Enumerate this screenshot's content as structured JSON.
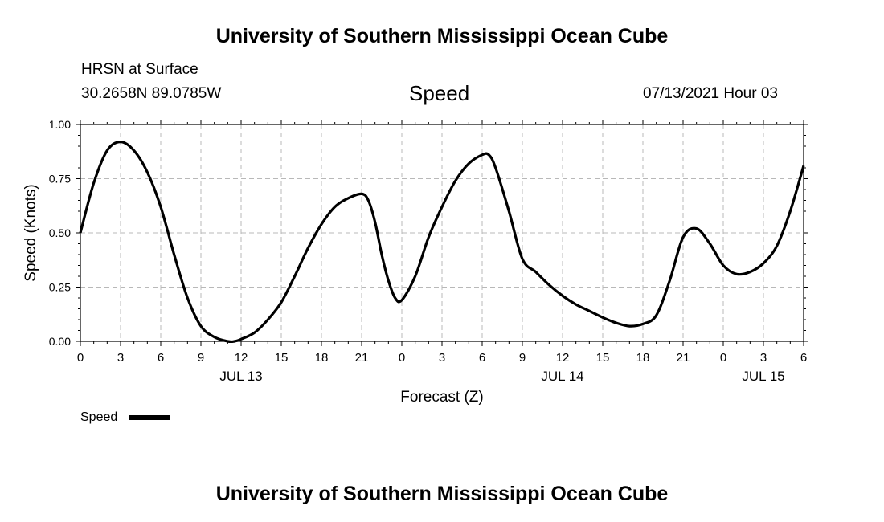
{
  "header": {
    "title_top": "University of Southern Mississippi Ocean Cube",
    "station": "HRSN at Surface",
    "coords": "30.2658N  89.0785W",
    "datetime": "07/13/2021 Hour 03"
  },
  "footer": {
    "title_bottom": "University of Southern Mississippi Ocean Cube"
  },
  "chart_data": {
    "type": "line",
    "title": "Speed",
    "xlabel": "Forecast (Z)",
    "ylabel": "Speed (Knots)",
    "ylim": [
      0,
      1.0
    ],
    "y_ticks": [
      "0.00",
      "0.25",
      "0.50",
      "0.75",
      "1.00"
    ],
    "x_range_hours": [
      0,
      54
    ],
    "x_tick_labels": [
      "0",
      "3",
      "6",
      "9",
      "12",
      "15",
      "18",
      "21",
      "0",
      "3",
      "6",
      "9",
      "12",
      "15",
      "18",
      "21",
      "0",
      "3",
      "6"
    ],
    "date_labels": [
      {
        "label": "JUL 13",
        "hour": 12
      },
      {
        "label": "JUL 14",
        "hour": 36
      },
      {
        "label": "JUL 15",
        "hour": 51
      }
    ],
    "grid": true,
    "legend_position": "bottom-left",
    "series": [
      {
        "name": "Speed",
        "color": "#000000",
        "x": [
          0,
          1,
          2,
          3,
          4,
          5,
          6,
          7,
          8,
          9,
          10,
          11,
          11.5,
          12,
          13,
          14,
          15,
          16,
          17,
          18,
          19,
          20,
          21,
          21.5,
          22,
          22.5,
          23,
          23.5,
          24,
          25,
          26,
          27,
          28,
          29,
          30,
          30.5,
          31,
          32,
          33,
          34,
          35,
          36,
          37,
          38,
          39,
          40,
          41,
          42,
          43,
          44,
          45,
          46,
          47,
          48,
          49,
          50,
          51,
          52,
          53,
          54
        ],
        "y": [
          0.5,
          0.73,
          0.88,
          0.92,
          0.88,
          0.78,
          0.62,
          0.4,
          0.2,
          0.07,
          0.02,
          0.0,
          0.0,
          0.01,
          0.04,
          0.1,
          0.18,
          0.3,
          0.43,
          0.54,
          0.62,
          0.66,
          0.68,
          0.65,
          0.55,
          0.4,
          0.28,
          0.2,
          0.19,
          0.3,
          0.48,
          0.62,
          0.74,
          0.82,
          0.86,
          0.86,
          0.8,
          0.6,
          0.38,
          0.32,
          0.26,
          0.21,
          0.17,
          0.14,
          0.11,
          0.085,
          0.07,
          0.08,
          0.12,
          0.28,
          0.48,
          0.52,
          0.45,
          0.35,
          0.31,
          0.32,
          0.36,
          0.44,
          0.6,
          0.81
        ]
      }
    ]
  }
}
